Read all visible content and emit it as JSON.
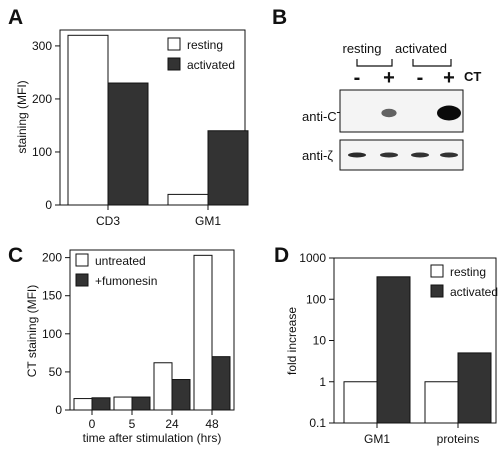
{
  "chart_data": [
    {
      "panel": "A",
      "type": "bar",
      "categories": [
        "CD3",
        "GM1"
      ],
      "series": [
        {
          "name": "resting",
          "values": [
            320,
            20
          ],
          "color": "#ffffff"
        },
        {
          "name": "activated",
          "values": [
            230,
            140
          ],
          "color": "#333333"
        }
      ],
      "ylabel": "staining (MFI)",
      "xlabel": "",
      "ylim": [
        0,
        330
      ],
      "yticks": [
        0,
        100,
        200,
        300
      ],
      "legend": "top-right",
      "grid": false
    },
    {
      "panel": "B",
      "type": "western-blot",
      "groups": [
        "resting",
        "activated"
      ],
      "treatment_label": "CT",
      "lane_signs": [
        "-",
        "+",
        "-",
        "+"
      ],
      "rows": [
        {
          "label": "anti-CT",
          "band_intensity": [
            0.05,
            0.45,
            0.05,
            1.0
          ]
        },
        {
          "label": "anti-ζ",
          "band_intensity": [
            0.8,
            0.75,
            0.75,
            0.75
          ]
        }
      ]
    },
    {
      "panel": "C",
      "type": "bar",
      "categories": [
        "0",
        "5",
        "24",
        "48"
      ],
      "series": [
        {
          "name": "untreated",
          "values": [
            15,
            17,
            62,
            203
          ],
          "color": "#ffffff"
        },
        {
          "name": "+fumonesin",
          "values": [
            16,
            17,
            40,
            70
          ],
          "color": "#333333"
        }
      ],
      "ylabel": "CT staining (MFI)",
      "xlabel": "time after stimulation (hrs)",
      "ylim": [
        0,
        210
      ],
      "yticks": [
        0,
        50,
        100,
        150,
        200
      ],
      "legend": "top-left",
      "grid": false
    },
    {
      "panel": "D",
      "type": "bar",
      "scale": "log",
      "categories": [
        "GM1",
        "proteins"
      ],
      "series": [
        {
          "name": "resting",
          "values": [
            1,
            1
          ],
          "color": "#ffffff"
        },
        {
          "name": "activated",
          "values": [
            350,
            5
          ],
          "color": "#333333"
        }
      ],
      "ylabel": "fold increase",
      "xlabel": "",
      "ylim": [
        0.1,
        1000
      ],
      "yticks": [
        "0.1",
        "1",
        "10",
        "100",
        "1000"
      ],
      "legend": "top-right",
      "grid": false
    }
  ]
}
